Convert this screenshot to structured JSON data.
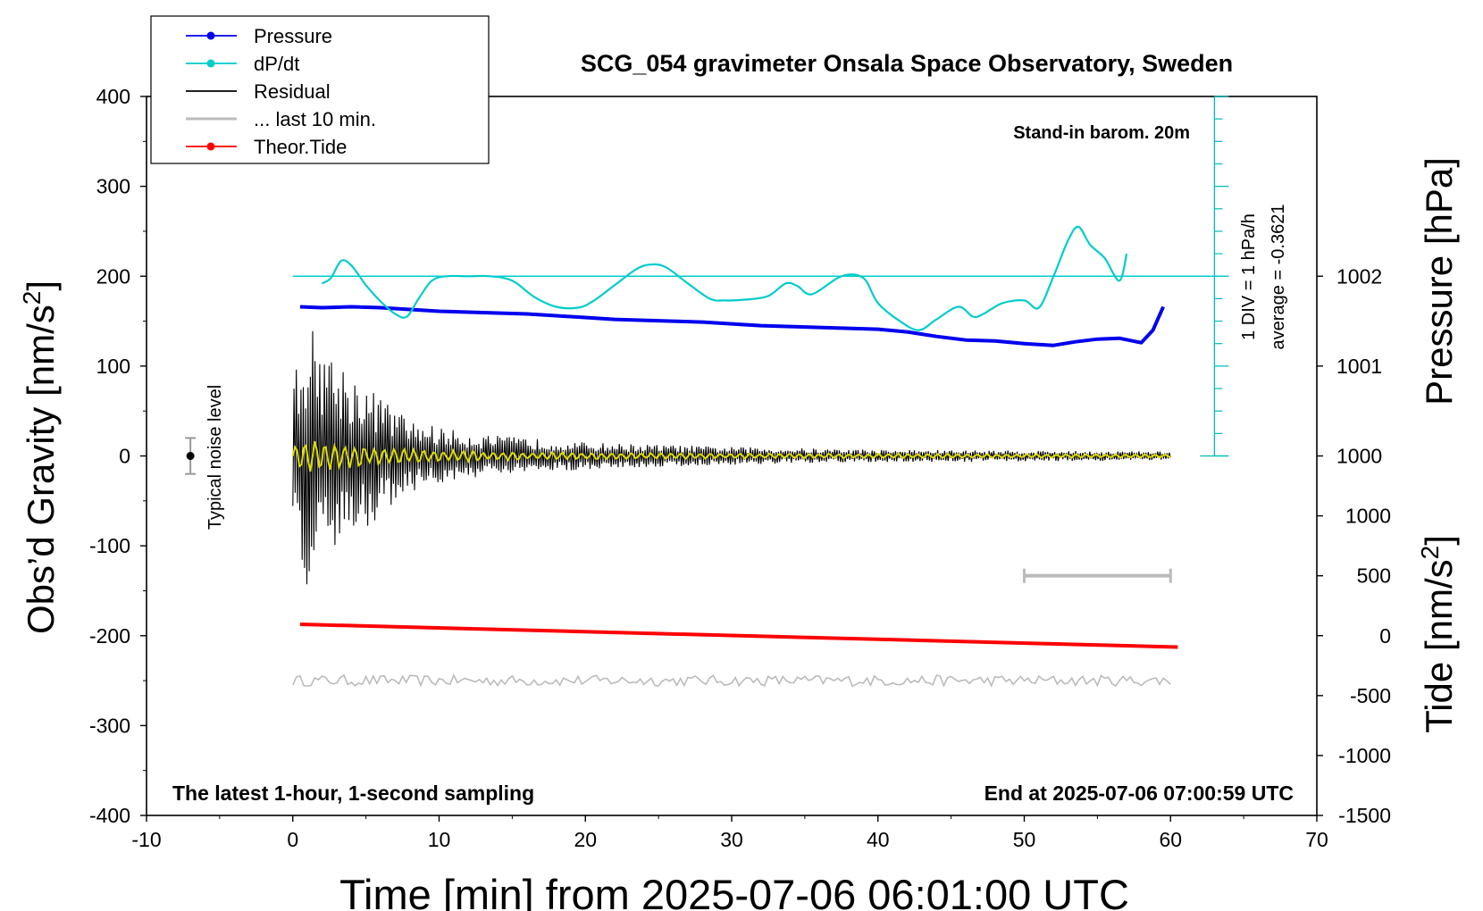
{
  "chart_data": {
    "type": "line",
    "title": "SCG_054 gravimeter Onsala Space Observatory, Sweden",
    "xlabel": "Time [min] from 2025-07-06 06:01:00 UTC",
    "ylabel_left": "Obs'd Gravity [nm/s2]",
    "ylabel_right_pressure": "Pressure [hPa]",
    "ylabel_right_tide": "Tide [nm/s2]",
    "xlim": [
      -10,
      70
    ],
    "ylim": [
      -400,
      400
    ],
    "pressure_lim": [
      999,
      1003
    ],
    "tide_lim": [
      -1500,
      1500
    ],
    "x_ticks": [
      -10,
      0,
      10,
      20,
      30,
      40,
      50,
      60,
      70
    ],
    "y_ticks": [
      -400,
      -300,
      -200,
      -100,
      0,
      100,
      200,
      300,
      400
    ],
    "pressure_ticks": [
      1000,
      1001,
      1002
    ],
    "tide_ticks": [
      -1500,
      -1000,
      -500,
      0,
      500,
      1000
    ],
    "legend": {
      "position": "top-left",
      "entries": [
        {
          "label": "Pressure",
          "color": "#0000ee",
          "marker": true
        },
        {
          "label": "dP/dt",
          "color": "#00cccc",
          "marker": true
        },
        {
          "label": "Residual",
          "color": "#000000",
          "marker": false
        },
        {
          "label": "... last 10 min.",
          "color": "#bbbbbb",
          "marker": false
        },
        {
          "label": "Theor.Tide",
          "color": "#ff0000",
          "marker": true
        }
      ]
    },
    "annotations": {
      "stand_in": "Stand-in barom. 20m",
      "footer_left": "The latest 1-hour, 1-second sampling",
      "footer_right": "End at 2025-07-06 07:00:59 UTC",
      "noise_label": "Typical noise level",
      "div_label": "1 DIV = 1 hPa/h",
      "average_label": "average = -0.3621"
    },
    "noise_bar": {
      "x": -7,
      "y": 0,
      "half_range": 20
    },
    "last10_bar": {
      "x_start": 50,
      "x_end": 60,
      "tide_level": 500
    },
    "dpdt_ref_level": 200,
    "series": [
      {
        "name": "Pressure",
        "color": "#0000ee",
        "axis": "pressure",
        "x": [
          0.5,
          2,
          4,
          6,
          8,
          10,
          12,
          14,
          16,
          18,
          20,
          22,
          24,
          26,
          28,
          30,
          32,
          34,
          36,
          38,
          40,
          42,
          44,
          46,
          48,
          50,
          52,
          53.5,
          55,
          56.5,
          58,
          58.8,
          59.5
        ],
        "values": [
          1001.66,
          1001.65,
          1001.66,
          1001.65,
          1001.63,
          1001.61,
          1001.6,
          1001.59,
          1001.58,
          1001.56,
          1001.54,
          1001.52,
          1001.51,
          1001.5,
          1001.49,
          1001.47,
          1001.45,
          1001.44,
          1001.43,
          1001.42,
          1001.41,
          1001.38,
          1001.33,
          1001.29,
          1001.28,
          1001.25,
          1001.23,
          1001.27,
          1001.3,
          1001.31,
          1001.26,
          1001.4,
          1001.66
        ]
      },
      {
        "name": "dP/dt",
        "color": "#00cccc",
        "axis": "dpdt",
        "x": [
          2,
          2.6,
          3.3,
          4,
          5,
          6,
          7,
          7.8,
          8.6,
          9.5,
          10.5,
          12,
          13.5,
          15,
          16.5,
          18,
          19.5,
          20.5,
          22,
          23.5,
          24.5,
          25.5,
          27,
          28.5,
          29.5,
          31,
          32.5,
          33.7,
          34.5,
          35.5,
          37.5,
          39,
          40,
          41.5,
          42.8,
          44,
          45.5,
          46.5,
          47.2,
          48.5,
          50,
          51,
          52,
          53,
          53.7,
          54.5,
          55.5,
          56.5,
          57
        ],
        "values": [
          -0.08,
          -0.02,
          0.17,
          0.12,
          -0.1,
          -0.28,
          -0.42,
          -0.45,
          -0.25,
          -0.05,
          0.0,
          0.0,
          0.0,
          -0.05,
          -0.23,
          -0.34,
          -0.35,
          -0.28,
          -0.1,
          0.08,
          0.13,
          0.1,
          -0.08,
          -0.25,
          -0.27,
          -0.26,
          -0.22,
          -0.08,
          -0.11,
          -0.2,
          0.0,
          -0.02,
          -0.3,
          -0.5,
          -0.6,
          -0.48,
          -0.34,
          -0.45,
          -0.42,
          -0.3,
          -0.27,
          -0.35,
          0.0,
          0.4,
          0.55,
          0.35,
          0.2,
          -0.05,
          0.25
        ]
      },
      {
        "name": "Theor.Tide",
        "color": "#ff0000",
        "axis": "tide",
        "x": [
          0.5,
          60.5
        ],
        "values": [
          95,
          -95
        ]
      },
      {
        "name": "Residual",
        "color": "#000000",
        "axis": "gravity",
        "x_range": [
          0,
          60
        ],
        "envelope": [
          [
            0,
            90
          ],
          [
            1,
            150
          ],
          [
            3,
            110
          ],
          [
            5,
            80
          ],
          [
            8,
            40
          ],
          [
            12,
            25
          ],
          [
            20,
            15
          ],
          [
            30,
            10
          ],
          [
            40,
            7
          ],
          [
            60,
            5
          ]
        ]
      },
      {
        "name": "Residual (smoothed)",
        "color": "#dddd00",
        "axis": "gravity",
        "x_range": [
          0,
          60
        ],
        "envelope": [
          [
            0,
            20
          ],
          [
            3,
            15
          ],
          [
            8,
            8
          ],
          [
            15,
            5
          ],
          [
            30,
            3
          ],
          [
            60,
            2
          ]
        ]
      },
      {
        "name": "... last 10 min.",
        "color": "#bbbbbb",
        "axis": "gravity",
        "x_range": [
          0,
          60
        ],
        "offset": -250,
        "amplitude": 6
      }
    ]
  }
}
